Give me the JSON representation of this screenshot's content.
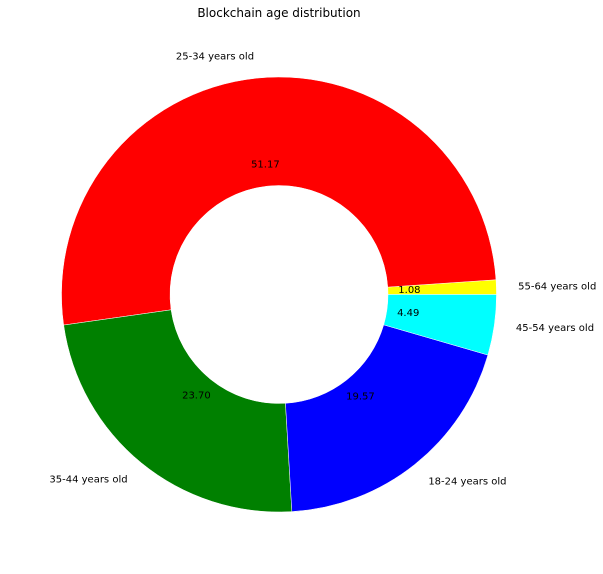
{
  "chart_data": {
    "type": "pie",
    "title": "Blockchain age distribution",
    "donut": true,
    "start_angle_deg": 0,
    "direction": "counterclockwise",
    "slices": [
      {
        "label": "55-64 years old",
        "value": 1.08,
        "display": "1.08",
        "color": "#ffff00"
      },
      {
        "label": "25-34 years old",
        "value": 51.17,
        "display": "51.17",
        "color": "#ff0000"
      },
      {
        "label": "35-44 years old",
        "value": 23.7,
        "display": "23.70",
        "color": "#008000"
      },
      {
        "label": "18-24 years old",
        "value": 19.57,
        "display": "19.57",
        "color": "#0000ff"
      },
      {
        "label": "45-54 years old",
        "value": 4.49,
        "display": "4.49",
        "color": "#00ffff"
      }
    ]
  }
}
